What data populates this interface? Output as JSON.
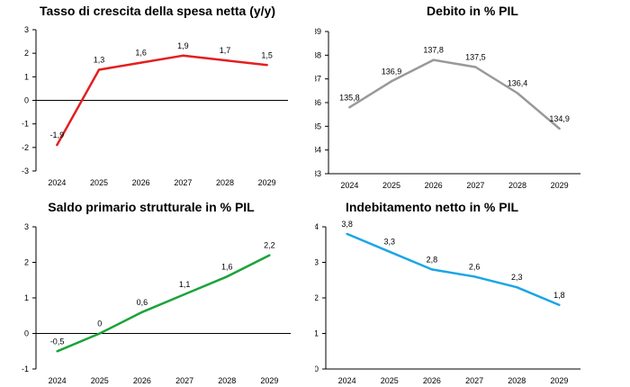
{
  "chart_data": [
    {
      "type": "line",
      "title": "Tasso di crescita della spesa netta (y/y)",
      "categories": [
        "2024",
        "2025",
        "2026",
        "2027",
        "2028",
        "2029"
      ],
      "values": [
        -1.9,
        1.3,
        1.6,
        1.9,
        1.7,
        1.5
      ],
      "data_labels": [
        "-1,9",
        "1,3",
        "1,6",
        "1,9",
        "1,7",
        "1,5"
      ],
      "ylim": [
        -3,
        3
      ],
      "yticks": [
        "-3",
        "-2",
        "-1",
        "0",
        "1",
        "2",
        "3"
      ],
      "color": "#e31f1f",
      "grid": false,
      "zero_line": true
    },
    {
      "type": "line",
      "title": "Debito in % PIL",
      "categories": [
        "2024",
        "2025",
        "2026",
        "2027",
        "2028",
        "2029"
      ],
      "values": [
        135.8,
        136.9,
        137.8,
        137.5,
        136.4,
        134.9
      ],
      "data_labels": [
        "135,8",
        "136,9",
        "137,8",
        "137,5",
        "136,4",
        "134,9"
      ],
      "ylim": [
        133,
        139
      ],
      "yticks": [
        "133",
        "134",
        "135",
        "136",
        "137",
        "138",
        "139"
      ],
      "color": "#999999",
      "grid": false,
      "zero_line": false
    },
    {
      "type": "line",
      "title": "Saldo primario strutturale in % PIL",
      "categories": [
        "2024",
        "2025",
        "2026",
        "2027",
        "2028",
        "2029"
      ],
      "values": [
        -0.5,
        0.0,
        0.6,
        1.1,
        1.6,
        2.2
      ],
      "data_labels": [
        "-0,5",
        "0",
        "0,6",
        "1,1",
        "1,6",
        "2,2"
      ],
      "ylim": [
        -1,
        3
      ],
      "yticks": [
        "-1",
        "0",
        "1",
        "2",
        "3"
      ],
      "color": "#1aa33a",
      "grid": false,
      "zero_line": true
    },
    {
      "type": "line",
      "title": "Indebitamento netto in % PIL",
      "categories": [
        "2024",
        "2025",
        "2026",
        "2027",
        "2028",
        "2029"
      ],
      "values": [
        3.8,
        3.3,
        2.8,
        2.6,
        2.3,
        1.8
      ],
      "data_labels": [
        "3,8",
        "3,3",
        "2,8",
        "2,6",
        "2,3",
        "1,8"
      ],
      "ylim": [
        0,
        4
      ],
      "yticks": [
        "0",
        "1",
        "2",
        "3",
        "4"
      ],
      "color": "#1aa6e6",
      "grid": false,
      "zero_line": false
    }
  ]
}
